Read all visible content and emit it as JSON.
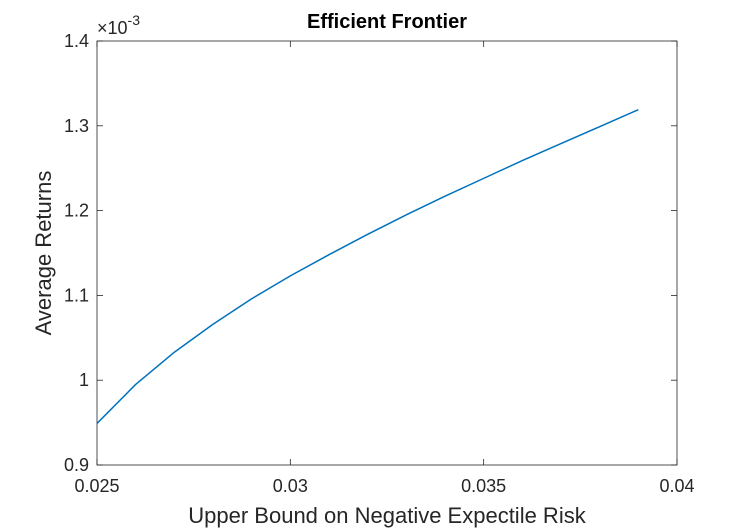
{
  "chart_data": {
    "type": "line",
    "title": "Efficient Frontier",
    "xlabel": "Upper Bound on Negative Expectile Risk",
    "ylabel": "Average Returns",
    "xlim": [
      0.025,
      0.04
    ],
    "ylim": [
      0.0009,
      0.0014
    ],
    "y_exponent_label": "×10",
    "y_exponent_power": "-3",
    "xticks": [
      {
        "value": 0.025,
        "label": "0.025"
      },
      {
        "value": 0.03,
        "label": "0.03"
      },
      {
        "value": 0.035,
        "label": "0.035"
      },
      {
        "value": 0.04,
        "label": "0.04"
      }
    ],
    "yticks": [
      {
        "value": 0.0009,
        "label": "0.9"
      },
      {
        "value": 0.001,
        "label": "1"
      },
      {
        "value": 0.0011,
        "label": "1.1"
      },
      {
        "value": 0.0012,
        "label": "1.2"
      },
      {
        "value": 0.0013,
        "label": "1.3"
      },
      {
        "value": 0.0014,
        "label": "1.4"
      }
    ],
    "grid": false,
    "series": [
      {
        "color": "#0072BD",
        "x": [
          0.025,
          0.026,
          0.027,
          0.028,
          0.029,
          0.03,
          0.031,
          0.032,
          0.033,
          0.034,
          0.035,
          0.036,
          0.037,
          0.038,
          0.039
        ],
        "y": [
          0.000949,
          0.000995,
          0.001033,
          0.001066,
          0.001096,
          0.001123,
          0.001148,
          0.001172,
          0.001195,
          0.001217,
          0.001238,
          0.001259,
          0.001279,
          0.001299,
          0.001319
        ]
      }
    ]
  }
}
